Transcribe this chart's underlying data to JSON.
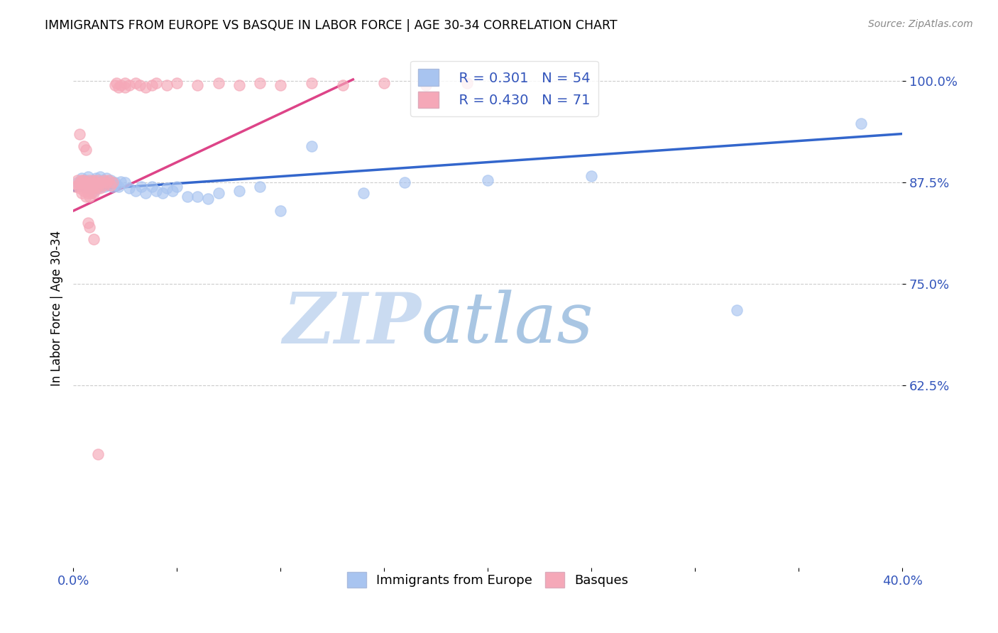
{
  "title": "IMMIGRANTS FROM EUROPE VS BASQUE IN LABOR FORCE | AGE 30-34 CORRELATION CHART",
  "source": "Source: ZipAtlas.com",
  "ylabel": "In Labor Force | Age 30-34",
  "legend_r_blue": "0.301",
  "legend_n_blue": "54",
  "legend_r_pink": "0.430",
  "legend_n_pink": "71",
  "blue_color": "#a8c4f0",
  "pink_color": "#f5a8b8",
  "line_blue": "#3366cc",
  "line_pink": "#dd4488",
  "watermark_zip": "ZIP",
  "watermark_atlas": "atlas",
  "watermark_color_zip": "#c8dcf5",
  "watermark_color_atlas": "#a8c8e8",
  "xlim": [
    0.0,
    0.4
  ],
  "ylim": [
    0.4,
    1.04
  ],
  "blue_scatter_x": [
    0.002,
    0.004,
    0.005,
    0.006,
    0.007,
    0.007,
    0.008,
    0.008,
    0.009,
    0.01,
    0.01,
    0.011,
    0.011,
    0.012,
    0.012,
    0.013,
    0.013,
    0.014,
    0.015,
    0.015,
    0.016,
    0.016,
    0.017,
    0.018,
    0.019,
    0.02,
    0.021,
    0.022,
    0.023,
    0.025,
    0.027,
    0.03,
    0.033,
    0.035,
    0.038,
    0.04,
    0.043,
    0.045,
    0.048,
    0.05,
    0.055,
    0.06,
    0.065,
    0.07,
    0.08,
    0.09,
    0.1,
    0.115,
    0.14,
    0.16,
    0.2,
    0.25,
    0.32,
    0.38
  ],
  "blue_scatter_y": [
    0.875,
    0.88,
    0.87,
    0.878,
    0.882,
    0.873,
    0.876,
    0.868,
    0.872,
    0.878,
    0.865,
    0.88,
    0.87,
    0.875,
    0.868,
    0.882,
    0.874,
    0.878,
    0.875,
    0.87,
    0.88,
    0.875,
    0.872,
    0.878,
    0.87,
    0.875,
    0.872,
    0.87,
    0.876,
    0.875,
    0.868,
    0.865,
    0.87,
    0.862,
    0.87,
    0.865,
    0.862,
    0.868,
    0.865,
    0.87,
    0.858,
    0.858,
    0.855,
    0.862,
    0.865,
    0.87,
    0.84,
    0.92,
    0.862,
    0.875,
    0.878,
    0.883,
    0.718,
    0.948
  ],
  "pink_scatter_x": [
    0.001,
    0.002,
    0.002,
    0.003,
    0.003,
    0.004,
    0.004,
    0.004,
    0.005,
    0.005,
    0.005,
    0.006,
    0.006,
    0.006,
    0.007,
    0.007,
    0.007,
    0.008,
    0.008,
    0.008,
    0.008,
    0.009,
    0.009,
    0.009,
    0.01,
    0.01,
    0.01,
    0.011,
    0.011,
    0.012,
    0.012,
    0.013,
    0.013,
    0.014,
    0.015,
    0.015,
    0.016,
    0.017,
    0.018,
    0.019,
    0.02,
    0.021,
    0.022,
    0.023,
    0.025,
    0.025,
    0.027,
    0.03,
    0.032,
    0.035,
    0.038,
    0.04,
    0.045,
    0.05,
    0.06,
    0.07,
    0.08,
    0.09,
    0.1,
    0.115,
    0.13,
    0.15,
    0.17,
    0.19,
    0.003,
    0.005,
    0.006,
    0.007,
    0.008,
    0.01,
    0.012
  ],
  "pink_scatter_y": [
    0.87,
    0.878,
    0.872,
    0.875,
    0.868,
    0.878,
    0.87,
    0.862,
    0.878,
    0.87,
    0.865,
    0.875,
    0.868,
    0.858,
    0.875,
    0.868,
    0.862,
    0.878,
    0.872,
    0.865,
    0.858,
    0.875,
    0.87,
    0.862,
    0.878,
    0.87,
    0.862,
    0.875,
    0.868,
    0.878,
    0.87,
    0.875,
    0.868,
    0.875,
    0.878,
    0.872,
    0.875,
    0.878,
    0.872,
    0.875,
    0.995,
    0.998,
    0.992,
    0.995,
    0.998,
    0.992,
    0.995,
    0.998,
    0.995,
    0.992,
    0.995,
    0.998,
    0.995,
    0.998,
    0.995,
    0.998,
    0.995,
    0.998,
    0.995,
    0.998,
    0.995,
    0.998,
    0.995,
    0.998,
    0.935,
    0.92,
    0.915,
    0.825,
    0.82,
    0.805,
    0.54
  ]
}
